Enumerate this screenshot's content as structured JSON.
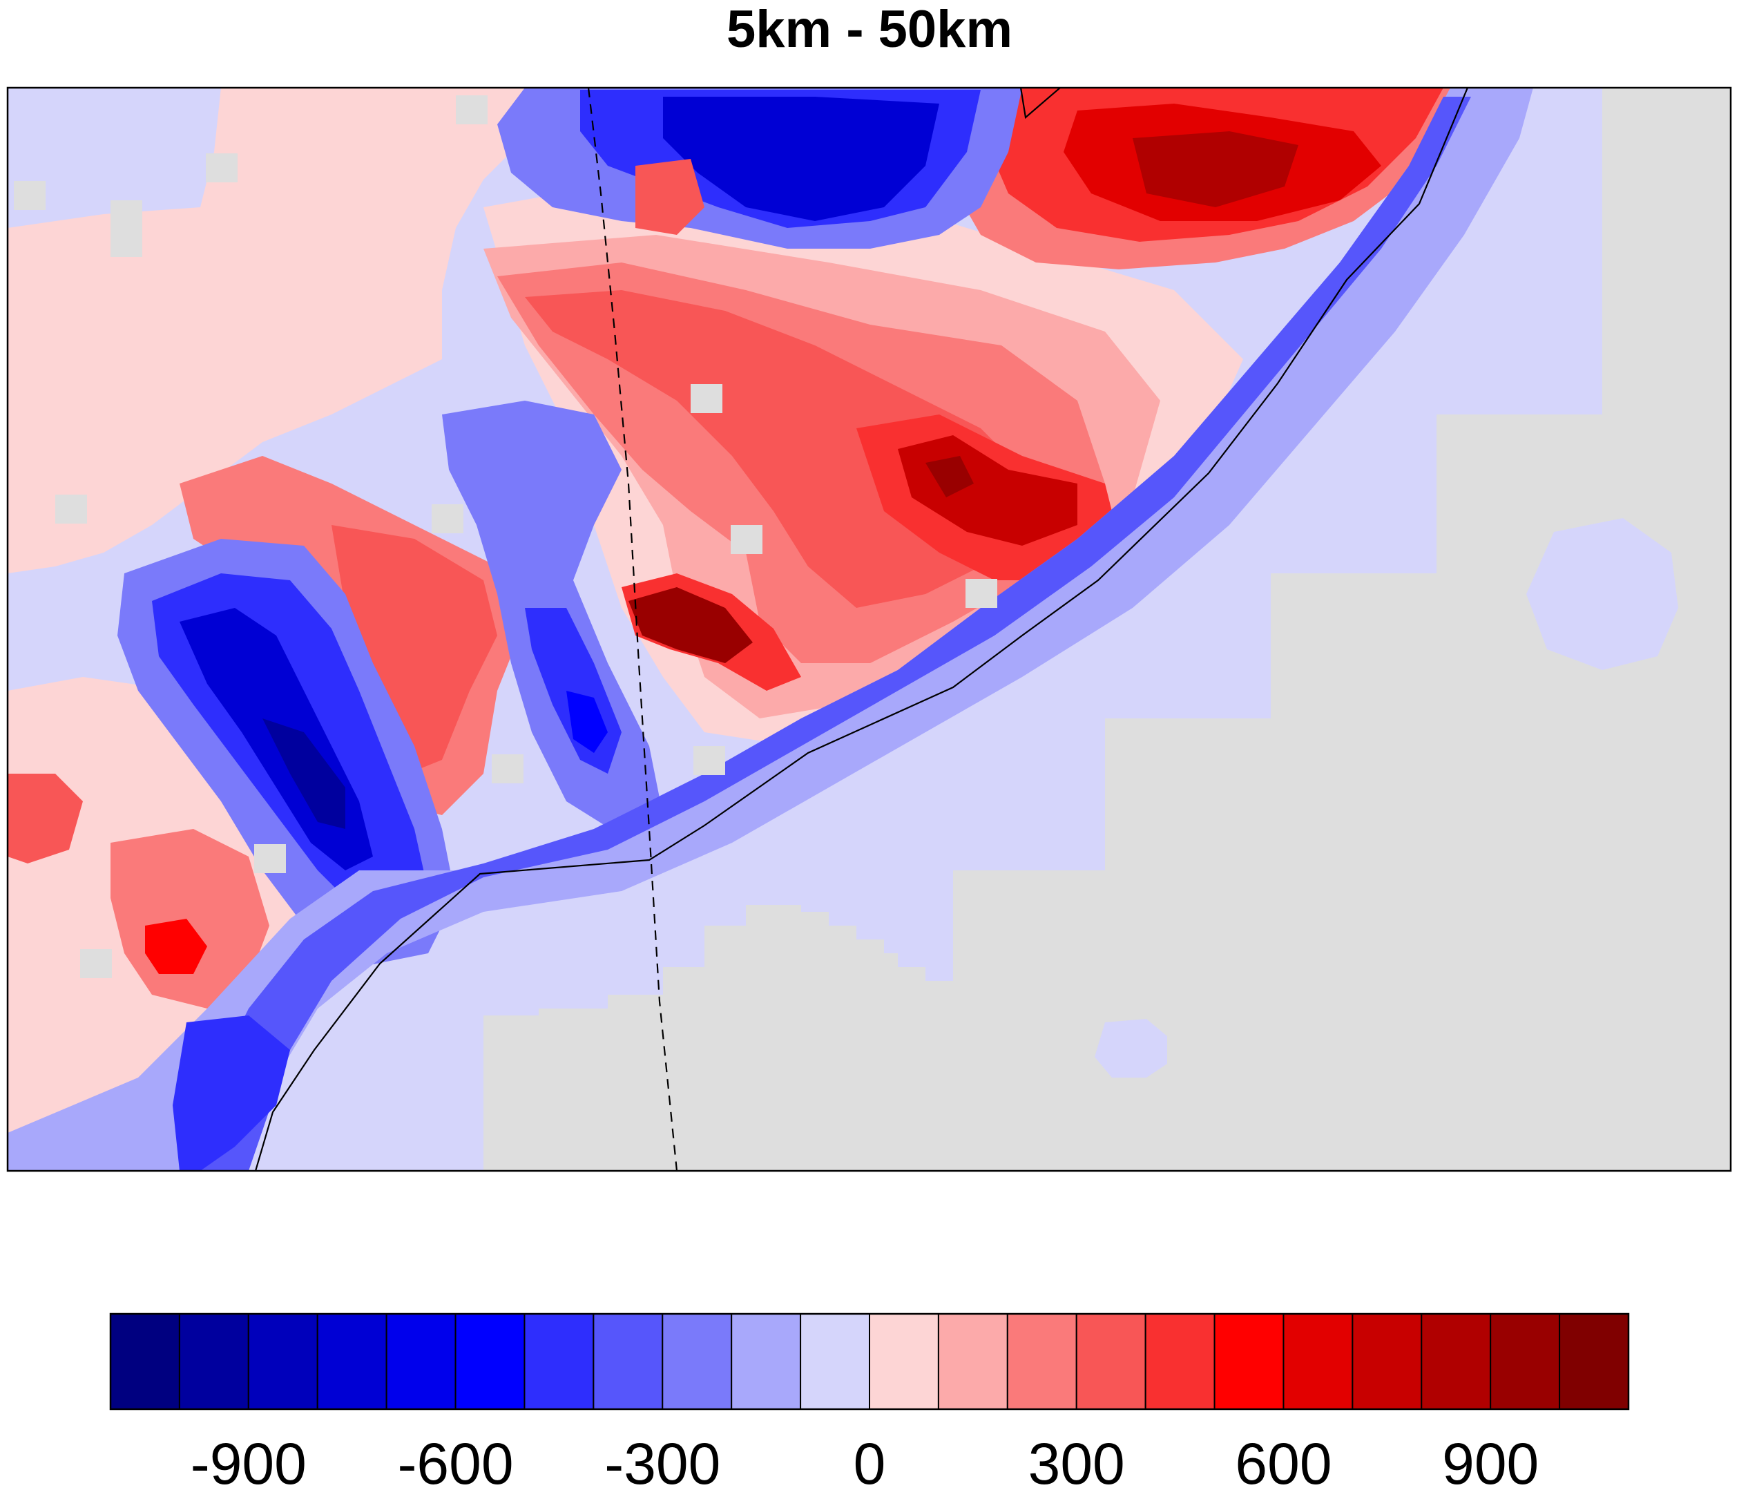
{
  "title": "5km - 50km",
  "map": {
    "land_fill": "#d5d5fb",
    "ocean_mask_color": "#dedede",
    "boundary_color": "#000000"
  },
  "colorbar": {
    "colors": [
      "#000080",
      "#00009e",
      "#0000bb",
      "#0000d4",
      "#0000ec",
      "#0000ff",
      "#2e2efd",
      "#5656fb",
      "#7a7afa",
      "#a8a8fb",
      "#d5d5fb",
      "#fdd5d5",
      "#fcaaaa",
      "#fa7a7a",
      "#f85656",
      "#f93030",
      "#ff0000",
      "#e20000",
      "#c80000",
      "#b00000",
      "#990000",
      "#800000"
    ],
    "tick_labels": [
      "-900",
      "-600",
      "-300",
      "0",
      "300",
      "600",
      "900"
    ]
  }
}
